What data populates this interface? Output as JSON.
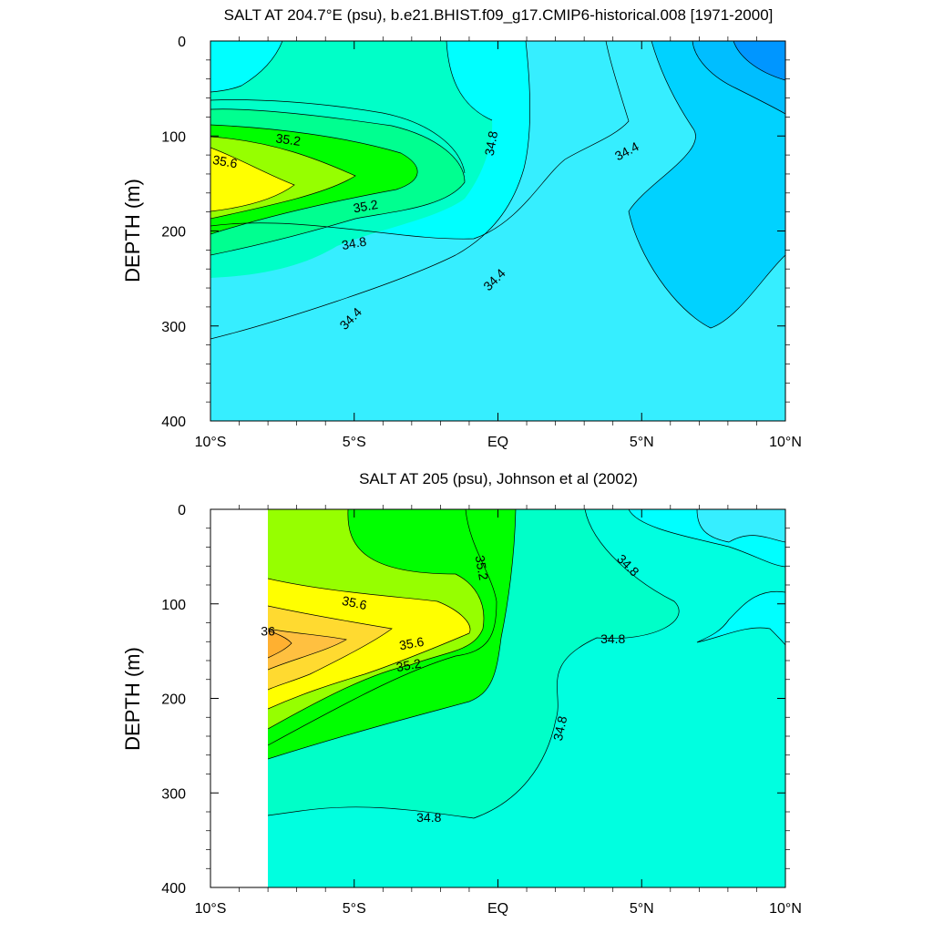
{
  "chart_data": [
    {
      "type": "contour",
      "title": "SALT AT 204.7°E (psu), b.e21.BHIST.f09_g17.CMIP6-historical.008 [1971-2000]",
      "xlabel": "",
      "ylabel": "DEPTH (m)",
      "xlim": [
        -10,
        10
      ],
      "ylim": [
        400,
        0
      ],
      "x_ticks": [
        -10,
        -5,
        0,
        5,
        10
      ],
      "x_tick_labels": [
        "10°S",
        "5°S",
        "EQ",
        "5°N",
        "10°N"
      ],
      "y_ticks": [
        0,
        100,
        200,
        300,
        400
      ],
      "y_tick_labels": [
        "0",
        "100",
        "200",
        "300",
        "400"
      ],
      "contour_interval": 0.2,
      "contour_labels": [
        {
          "text": "35.2",
          "lat": -7.3,
          "depth": 105,
          "angle": 8
        },
        {
          "text": "35.6",
          "lat": -9.5,
          "depth": 128,
          "angle": 10
        },
        {
          "text": "35.2",
          "lat": -4.6,
          "depth": 175,
          "angle": -10
        },
        {
          "text": "34.8",
          "lat": -5.0,
          "depth": 214,
          "angle": -10
        },
        {
          "text": "34.8",
          "lat": -0.2,
          "depth": 108,
          "angle": -80
        },
        {
          "text": "34.4",
          "lat": 4.5,
          "depth": 117,
          "angle": -28
        },
        {
          "text": "34.4",
          "lat": -0.1,
          "depth": 252,
          "angle": -45
        },
        {
          "text": "34.4",
          "lat": -5.1,
          "depth": 293,
          "angle": -45
        }
      ]
    },
    {
      "type": "contour",
      "title": "SALT AT 205 (psu), Johnson et al (2002)",
      "xlabel": "",
      "ylabel": "DEPTH (m)",
      "xlim": [
        -10,
        10
      ],
      "ylim": [
        400,
        0
      ],
      "x_ticks": [
        -10,
        -5,
        0,
        5,
        10
      ],
      "x_tick_labels": [
        "10°S",
        "5°S",
        "EQ",
        "5°N",
        "10°N"
      ],
      "y_ticks": [
        0,
        100,
        200,
        300,
        400
      ],
      "y_tick_labels": [
        "0",
        "100",
        "200",
        "300",
        "400"
      ],
      "contour_interval": 0.2,
      "data_starts_lat": -8,
      "contour_labels": [
        {
          "text": "35.2",
          "lat": -0.6,
          "depth": 62,
          "angle": 80
        },
        {
          "text": "34.8",
          "lat": 4.5,
          "depth": 60,
          "angle": 45
        },
        {
          "text": "35.6",
          "lat": -5.0,
          "depth": 100,
          "angle": 12
        },
        {
          "text": "36",
          "lat": -8.0,
          "depth": 130,
          "angle": 0
        },
        {
          "text": "35.6",
          "lat": -3.0,
          "depth": 143,
          "angle": -10
        },
        {
          "text": "35.2",
          "lat": -3.1,
          "depth": 166,
          "angle": -10
        },
        {
          "text": "34.8",
          "lat": 4.0,
          "depth": 138,
          "angle": 0
        },
        {
          "text": "34.8",
          "lat": 2.2,
          "depth": 232,
          "angle": -78
        },
        {
          "text": "34.8",
          "lat": -2.4,
          "depth": 327,
          "angle": 0
        }
      ]
    }
  ]
}
